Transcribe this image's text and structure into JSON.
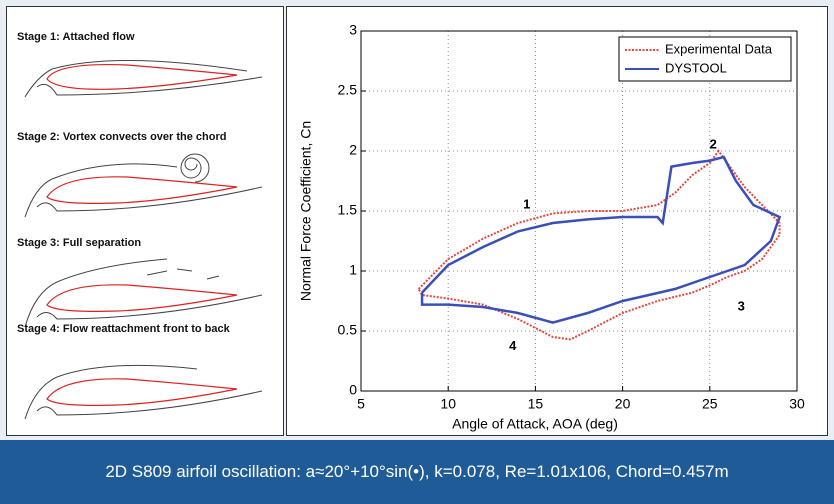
{
  "panel": {
    "stages": [
      "Stage 1: Attached flow",
      "Stage 2: Vortex convects over the chord",
      "Stage 3: Full separation",
      "Stage 4: Flow reattachment front to back"
    ]
  },
  "chart_data": {
    "type": "line",
    "xlabel": "Angle of Attack, AOA (deg)",
    "ylabel": "Normal Force Coefficient, Cn",
    "xlim": [
      5,
      30
    ],
    "xticks": [
      5,
      10,
      15,
      20,
      25,
      30
    ],
    "ylim": [
      0,
      3
    ],
    "yticks": [
      0,
      0.5,
      1,
      1.5,
      2,
      2.5,
      3
    ],
    "grid": true,
    "legend": "upper right",
    "series": [
      {
        "name": "Experimental Data",
        "color": "#e8463c",
        "x": [
          8.3,
          10,
          12,
          14,
          16,
          18,
          20,
          22,
          23,
          24,
          25,
          25.5,
          26,
          27,
          28,
          29,
          29,
          28,
          27,
          26,
          25,
          24,
          22,
          20,
          18,
          17,
          16,
          14,
          12,
          10,
          8.5,
          8.3
        ],
        "values": [
          0.85,
          1.1,
          1.27,
          1.4,
          1.48,
          1.5,
          1.5,
          1.55,
          1.65,
          1.8,
          1.9,
          2.0,
          1.9,
          1.7,
          1.55,
          1.4,
          1.3,
          1.1,
          1.0,
          0.95,
          0.88,
          0.82,
          0.75,
          0.65,
          0.5,
          0.43,
          0.45,
          0.6,
          0.72,
          0.77,
          0.8,
          0.85
        ]
      },
      {
        "name": "DYSTOOL",
        "color": "#3a4fb8",
        "x": [
          8.5,
          10,
          12,
          14,
          16,
          18,
          20,
          22,
          22.3,
          22.8,
          24,
          25,
          25.8,
          26.5,
          27.5,
          29,
          28.5,
          27,
          25,
          23,
          20,
          18,
          16,
          14,
          12,
          10,
          8.5,
          8.5
        ],
        "values": [
          0.82,
          1.05,
          1.2,
          1.33,
          1.4,
          1.43,
          1.45,
          1.45,
          1.4,
          1.87,
          1.9,
          1.92,
          1.95,
          1.75,
          1.55,
          1.45,
          1.25,
          1.05,
          0.95,
          0.85,
          0.75,
          0.65,
          0.57,
          0.65,
          0.7,
          0.72,
          0.72,
          0.82
        ]
      }
    ],
    "annotations": [
      {
        "text": "1",
        "x": 14.5,
        "y": 1.55
      },
      {
        "text": "2",
        "x": 25.2,
        "y": 2.05
      },
      {
        "text": "3",
        "x": 26.8,
        "y": 0.7
      },
      {
        "text": "4",
        "x": 13.7,
        "y": 0.37
      }
    ]
  },
  "caption": "2D S809 airfoil oscillation: a≈20°+10°sin(•), k=0.078, Re=1.01x106, Chord=0.457m"
}
